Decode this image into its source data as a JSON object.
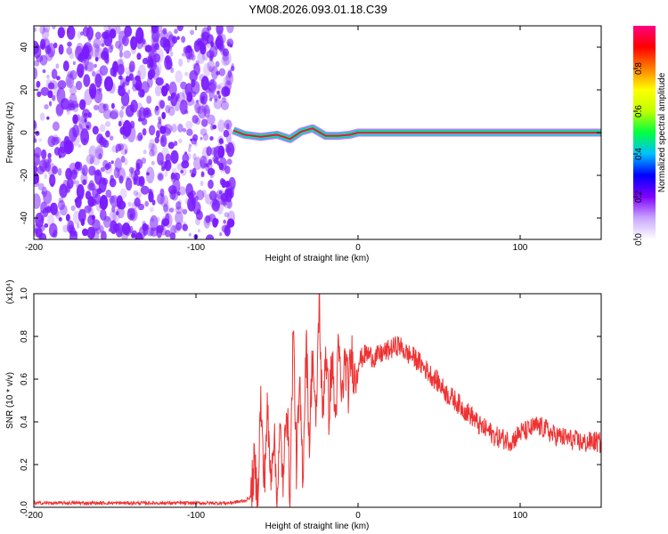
{
  "title": "YM08.2026.093.01.18.C39",
  "chart_data": [
    {
      "type": "heatmap",
      "xlabel": "Height of straight line (km)",
      "ylabel": "Frequency (Hz)",
      "xlim": [
        -200,
        150
      ],
      "ylim": [
        -50,
        50
      ],
      "xticks": [
        -200,
        -100,
        0,
        100
      ],
      "yticks": [
        -40,
        -20,
        0,
        20,
        40
      ],
      "colorbar": {
        "label": "Normalized spectral amplitude",
        "range": [
          0,
          1
        ],
        "ticks": [
          "0.0",
          "0.2",
          "0.4",
          "0.6",
          "0.8"
        ],
        "tick_values": [
          0,
          0.2,
          0.4,
          0.6,
          0.8
        ],
        "colors": [
          "#ffffff",
          "#c9a6ff",
          "#8000ff",
          "#0000ff",
          "#00c0ff",
          "#00ff40",
          "#c0ff00",
          "#ffff00",
          "#ff8000",
          "#ff0000",
          "#ff0080"
        ]
      },
      "noise_region_x": [
        -200,
        -77
      ],
      "noise_color": "#7a1cff",
      "signal_line_x": [
        -77,
        150
      ],
      "signal_frequency_hz": 0,
      "signal_ridge": [
        {
          "x": -77,
          "y": 1.0
        },
        {
          "x": -70,
          "y": -1.0
        },
        {
          "x": -60,
          "y": -2.0
        },
        {
          "x": -50,
          "y": -1.0
        },
        {
          "x": -42,
          "y": -3.0
        },
        {
          "x": -35,
          "y": 0.5
        },
        {
          "x": -28,
          "y": 2.0
        },
        {
          "x": -20,
          "y": -1.5
        },
        {
          "x": -12,
          "y": -1.5
        },
        {
          "x": -5,
          "y": -1.0
        },
        {
          "x": 0,
          "y": 0.0
        },
        {
          "x": 150,
          "y": 0.0
        }
      ]
    },
    {
      "type": "line",
      "xlabel": "Height of straight line (km)",
      "ylabel": "SNR (10 * v/v)",
      "y_multiplier": "(x10⁴)",
      "xlim": [
        -200,
        150
      ],
      "ylim": [
        0,
        1.0
      ],
      "xticks": [
        -200,
        -100,
        0,
        100
      ],
      "yticks": [
        "0.0",
        "0.2",
        "0.4",
        "0.6",
        "0.8",
        "1.0"
      ],
      "ytick_values": [
        0,
        0.2,
        0.4,
        0.6,
        0.8,
        1.0
      ],
      "color": "#ee3333",
      "series": [
        {
          "x": [
            -200,
            -180,
            -160,
            -140,
            -120,
            -100,
            -80,
            -70,
            -66,
            -64,
            -62,
            -60,
            -58,
            -56,
            -54,
            -52,
            -50,
            -48,
            -46,
            -44,
            -42,
            -40,
            -38,
            -36,
            -34,
            -32,
            -30,
            -28,
            -26,
            -24,
            -22,
            -20,
            -18,
            -16,
            -14,
            -12,
            -10,
            -8,
            -6,
            -4,
            -2,
            0,
            5,
            10,
            15,
            20,
            25,
            30,
            35,
            40,
            45,
            50,
            55,
            60,
            65,
            70,
            75,
            80,
            85,
            90,
            95,
            100,
            105,
            110,
            115,
            120,
            125,
            130,
            135,
            140,
            145,
            150
          ],
          "y": [
            0.02,
            0.02,
            0.02,
            0.02,
            0.02,
            0.02,
            0.02,
            0.03,
            0.05,
            0.2,
            0.05,
            0.5,
            0.1,
            0.45,
            0.15,
            0.35,
            0.05,
            0.35,
            0.1,
            0.55,
            0.02,
            0.85,
            0.2,
            0.55,
            0.15,
            0.8,
            0.3,
            0.75,
            0.35,
            1.0,
            0.4,
            0.75,
            0.45,
            0.7,
            0.4,
            0.75,
            0.5,
            0.7,
            0.55,
            0.72,
            0.6,
            0.68,
            0.72,
            0.7,
            0.72,
            0.74,
            0.76,
            0.72,
            0.7,
            0.66,
            0.62,
            0.58,
            0.53,
            0.5,
            0.46,
            0.43,
            0.38,
            0.36,
            0.33,
            0.32,
            0.31,
            0.35,
            0.36,
            0.38,
            0.37,
            0.34,
            0.33,
            0.32,
            0.31,
            0.3,
            0.31,
            0.3
          ]
        }
      ]
    }
  ]
}
